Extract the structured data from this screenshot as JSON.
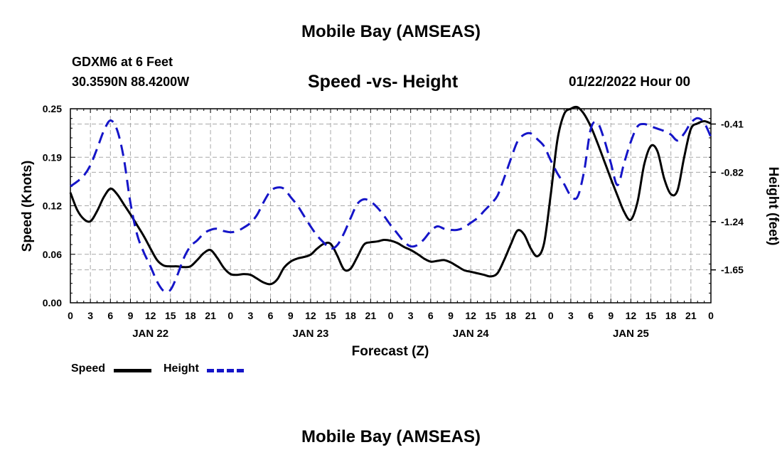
{
  "page": {
    "title_top": "Mobile Bay (AMSEAS)",
    "title_bottom": "Mobile Bay (AMSEAS)",
    "station": "GDXM6 at 6 Feet",
    "coords": "30.3590N  88.4200W",
    "subtitle": "Speed -vs- Height",
    "datetime": "01/22/2022 Hour 00"
  },
  "colors": {
    "speed": "#000000",
    "height": "#1515c8",
    "grid": "#a8a8a8"
  },
  "chart_data": {
    "type": "line",
    "title": "Speed -vs- Height",
    "xlabel": "Forecast (Z)",
    "ylabel_left": "Speed (Knots)",
    "ylabel_right": "Height (feet)",
    "x_range": [
      0,
      96
    ],
    "y_left_range": [
      0,
      0.25
    ],
    "y_right_range": [
      -1.93,
      -0.28
    ],
    "x_ticks": {
      "hours": [
        0,
        3,
        6,
        9,
        12,
        15,
        18,
        21,
        24,
        27,
        30,
        33,
        36,
        39,
        42,
        45,
        48,
        51,
        54,
        57,
        60,
        63,
        66,
        69,
        72,
        75,
        78,
        81,
        84,
        87,
        90,
        93,
        96
      ],
      "labels": [
        "0",
        "3",
        "6",
        "9",
        "12",
        "15",
        "18",
        "21",
        "0",
        "3",
        "6",
        "9",
        "12",
        "15",
        "18",
        "21",
        "0",
        "3",
        "6",
        "9",
        "12",
        "15",
        "18",
        "21",
        "0",
        "3",
        "6",
        "9",
        "12",
        "15",
        "18",
        "21",
        "0"
      ]
    },
    "date_labels": [
      {
        "hour": 12,
        "label": "JAN 22"
      },
      {
        "hour": 36,
        "label": "JAN 23"
      },
      {
        "hour": 60,
        "label": "JAN 24"
      },
      {
        "hour": 84,
        "label": "JAN 25"
      }
    ],
    "y_left_ticks": [
      {
        "value": 0.0,
        "label": "0.00"
      },
      {
        "value": 0.0625,
        "label": "0.06"
      },
      {
        "value": 0.125,
        "label": "0.12"
      },
      {
        "value": 0.1875,
        "label": "0.19"
      },
      {
        "value": 0.25,
        "label": "0.25"
      }
    ],
    "y_right_ticks": [
      {
        "value": -0.41,
        "label": "-0.41"
      },
      {
        "value": -0.82,
        "label": "-0.82"
      },
      {
        "value": -1.24,
        "label": "-1.24"
      },
      {
        "value": -1.65,
        "label": "-1.65"
      }
    ],
    "series": [
      {
        "name": "Speed",
        "axis": "left",
        "style": "solid",
        "x": [
          0,
          1,
          2,
          3,
          4,
          5,
          6,
          7,
          8,
          9,
          10,
          11,
          12,
          13,
          14,
          15,
          16,
          17,
          18,
          19,
          20,
          21,
          22,
          23,
          24,
          25,
          26,
          27,
          28,
          29,
          30,
          31,
          32,
          33,
          34,
          35,
          36,
          37,
          38,
          39,
          40,
          41,
          42,
          43,
          44,
          45,
          46,
          47,
          48,
          49,
          50,
          51,
          52,
          53,
          54,
          55,
          56,
          57,
          58,
          59,
          60,
          61,
          62,
          63,
          64,
          65,
          66,
          67,
          68,
          69,
          70,
          71,
          72,
          73,
          74,
          75,
          76,
          77,
          78,
          79,
          80,
          81,
          82,
          83,
          84,
          85,
          86,
          87,
          88,
          89,
          90,
          91,
          92,
          93,
          94,
          95,
          96
        ],
        "values": [
          0.142,
          0.12,
          0.108,
          0.105,
          0.118,
          0.136,
          0.147,
          0.14,
          0.127,
          0.114,
          0.1,
          0.086,
          0.07,
          0.055,
          0.048,
          0.047,
          0.047,
          0.046,
          0.047,
          0.055,
          0.064,
          0.068,
          0.058,
          0.045,
          0.037,
          0.036,
          0.037,
          0.036,
          0.031,
          0.026,
          0.024,
          0.03,
          0.045,
          0.053,
          0.057,
          0.059,
          0.062,
          0.07,
          0.076,
          0.076,
          0.061,
          0.043,
          0.044,
          0.059,
          0.075,
          0.078,
          0.079,
          0.081,
          0.08,
          0.077,
          0.072,
          0.068,
          0.063,
          0.057,
          0.053,
          0.054,
          0.055,
          0.052,
          0.047,
          0.042,
          0.04,
          0.038,
          0.036,
          0.034,
          0.038,
          0.055,
          0.075,
          0.093,
          0.088,
          0.07,
          0.06,
          0.077,
          0.14,
          0.21,
          0.243,
          0.25,
          0.252,
          0.243,
          0.227,
          0.206,
          0.183,
          0.16,
          0.138,
          0.117,
          0.107,
          0.13,
          0.178,
          0.202,
          0.195,
          0.16,
          0.14,
          0.145,
          0.188,
          0.224,
          0.231,
          0.234,
          0.231
        ]
      },
      {
        "name": "Height",
        "axis": "right",
        "style": "dashed",
        "x": [
          0,
          1,
          2,
          3,
          4,
          5,
          6,
          7,
          8,
          9,
          10,
          11,
          12,
          13,
          14,
          15,
          16,
          17,
          18,
          19,
          20,
          21,
          22,
          23,
          24,
          25,
          26,
          27,
          28,
          29,
          30,
          31,
          32,
          33,
          34,
          35,
          36,
          37,
          38,
          39,
          40,
          41,
          42,
          43,
          44,
          45,
          46,
          47,
          48,
          49,
          50,
          51,
          52,
          53,
          54,
          55,
          56,
          57,
          58,
          59,
          60,
          61,
          62,
          63,
          64,
          65,
          66,
          67,
          68,
          69,
          70,
          71,
          72,
          73,
          74,
          75,
          76,
          77,
          78,
          79,
          80,
          81,
          82,
          83,
          84,
          85,
          86,
          87,
          88,
          89,
          90,
          91,
          92,
          93,
          94,
          95,
          96
        ],
        "values": [
          -0.94,
          -0.9,
          -0.85,
          -0.76,
          -0.62,
          -0.47,
          -0.38,
          -0.46,
          -0.7,
          -1.08,
          -1.35,
          -1.5,
          -1.62,
          -1.75,
          -1.83,
          -1.82,
          -1.7,
          -1.55,
          -1.45,
          -1.4,
          -1.34,
          -1.31,
          -1.3,
          -1.32,
          -1.33,
          -1.32,
          -1.29,
          -1.25,
          -1.18,
          -1.07,
          -0.98,
          -0.95,
          -0.96,
          -1.03,
          -1.1,
          -1.19,
          -1.28,
          -1.36,
          -1.42,
          -1.47,
          -1.44,
          -1.34,
          -1.21,
          -1.09,
          -1.05,
          -1.07,
          -1.12,
          -1.19,
          -1.27,
          -1.34,
          -1.41,
          -1.45,
          -1.44,
          -1.39,
          -1.32,
          -1.28,
          -1.3,
          -1.31,
          -1.31,
          -1.29,
          -1.25,
          -1.21,
          -1.15,
          -1.09,
          -1.02,
          -0.87,
          -0.71,
          -0.56,
          -0.5,
          -0.49,
          -0.54,
          -0.6,
          -0.72,
          -0.83,
          -0.92,
          -1.02,
          -1.03,
          -0.81,
          -0.45,
          -0.4,
          -0.54,
          -0.74,
          -0.93,
          -0.74,
          -0.56,
          -0.43,
          -0.41,
          -0.43,
          -0.45,
          -0.47,
          -0.5,
          -0.55,
          -0.49,
          -0.4,
          -0.36,
          -0.4,
          -0.52
        ]
      }
    ],
    "legend": [
      {
        "name": "Speed",
        "style": "solid"
      },
      {
        "name": "Height",
        "style": "dashed"
      }
    ],
    "grid": true
  }
}
